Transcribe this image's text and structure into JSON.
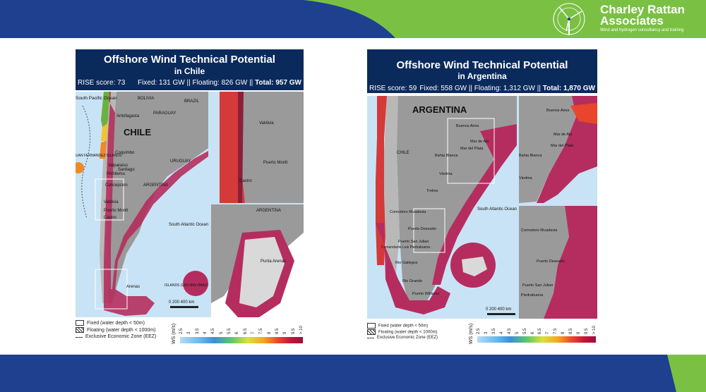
{
  "brand": {
    "name_line1": "Charley Rattan",
    "name_line2": "Associates",
    "tagline": "Wind and hydrogen consultancy and training",
    "colors": {
      "navy": "#1f3f8f",
      "green": "#7ac143"
    }
  },
  "panels": [
    {
      "id": "chile",
      "title": "Offshore Wind Technical Potential",
      "subtitle": "in Chile",
      "rise": "RISE score: 73",
      "capacity_prefix": "Fixed: 131 GW  || Floating: 826 GW  || ",
      "capacity_total": "Total: 957 GW",
      "country_label": "CHILE",
      "labels": {
        "south_pacific": "South Pacific Ocean",
        "bolivia": "BOLIVIA",
        "brazil": "BRAZIL",
        "paraguay": "PARAGUAY",
        "uruguay": "URUGUAY",
        "argentina": "ARGENTINA",
        "south_atlantic": "South Atlantic Ocean",
        "islands_left": "UAN FERNANDEZ ISLANDS",
        "islands_right": "ISLANDS (LAS MALVINAS)",
        "argentina_inset": "ARGENTINA",
        "cities": [
          "Antofagasta",
          "Coquimbo",
          "Valparaiso",
          "Santiago",
          "Pichilemu",
          "Concepcion",
          "Valdivia",
          "Puerto Montt",
          "Castro",
          "Arenas"
        ],
        "inset_cities": [
          "Valdivia",
          "Puerto Montt",
          "Castro"
        ],
        "inset_south_city": "Punta Arenas"
      },
      "scale_text": "0   200   400 km"
    },
    {
      "id": "argentina",
      "title": "Offshore Wind Technical Potential",
      "subtitle": "in Argentina",
      "rise": "RISE score: 59",
      "capacity_prefix": "Fixed: 558 GW  || Floating: 1,312 GW  || ",
      "capacity_total": "Total: 1,870 GW",
      "country_label": "ARGENTINA",
      "labels": {
        "chile": "CHILE",
        "south_atlantic": "South Atlantic Ocean",
        "cities": [
          "Buenos Aires",
          "Mar de Ajo",
          "Mar del Plata",
          "Bahia Blanca",
          "Viedma",
          "Trelew",
          "Comodoro Rivadavia",
          "Puerto Deseado",
          "Puerto San Julian",
          "Comandante Luis Piedrabuena",
          "Rio Gallegos",
          "Rio Grande",
          "Puerto Williams"
        ],
        "inset1_cities": [
          "Buenos Aires",
          "Mar de Ajo",
          "Mar del Plata",
          "Bahia Blanca",
          "Viedma"
        ],
        "inset2_cities": [
          "Comodoro Rivadavia",
          "Puerto Deseado",
          "Puerto San Julian",
          "Piedrabuena"
        ]
      },
      "scale_text": "0   200   400 km"
    }
  ],
  "legend": {
    "fixed": "Fixed (water depth < 50m)",
    "floating": "Floating (water depth < 1000m)",
    "eez": "Exclusive Economic Zone (EEZ)",
    "ws_label": "WS (m/s)",
    "ticks": [
      "2.5",
      "3",
      "3.5",
      "4",
      "4.5",
      "5",
      "5.5",
      "6",
      "6.5",
      "7",
      "7.5",
      "8",
      "8.5",
      "9",
      "9.5",
      "> 10"
    ]
  }
}
